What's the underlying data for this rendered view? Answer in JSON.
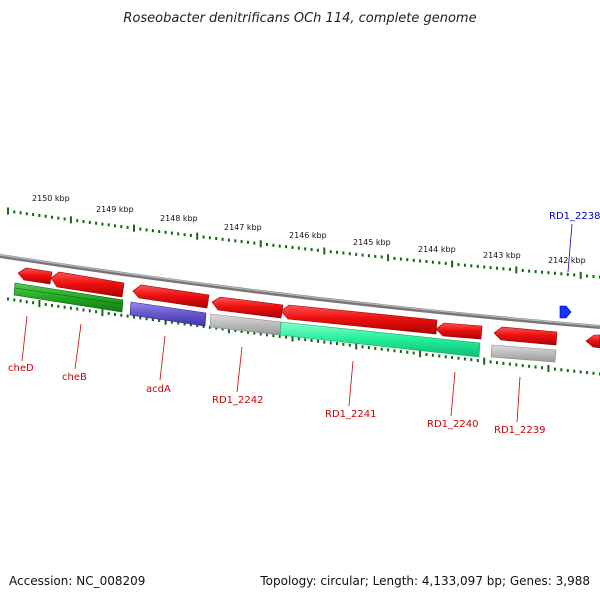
{
  "title": "Roseobacter denitrificans OCh 114, complete genome",
  "tick_labels": [
    "2150 kbp",
    "2149 kbp",
    "2148 kbp",
    "2147 kbp",
    "2146 kbp",
    "2145 kbp",
    "2144 kbp",
    "2143 kbp",
    "2142 kbp"
  ],
  "genes": [
    {
      "name": "cheD",
      "color": "#cc0000",
      "fill": "#ee1111",
      "strand": "-"
    },
    {
      "name": "cheB",
      "color": "#cc0000",
      "fill": "#ee1111",
      "strand": "-"
    },
    {
      "name": "",
      "color": "#117711",
      "fill": "#22aa22",
      "strand": "-"
    },
    {
      "name": "acdA",
      "color": "#cc0000",
      "fill": "#ee1111",
      "strand": "-"
    },
    {
      "name": "RD1_2242",
      "color": "#cc0000",
      "fill": "#ee1111",
      "strand": "-"
    },
    {
      "name": "RD1_2241",
      "color": "#cc0000",
      "fill": "#ee1111",
      "strand": "-"
    },
    {
      "name": "RD1_2240",
      "color": "#cc0000",
      "fill": "#ee1111",
      "strand": "-"
    },
    {
      "name": "RD1_2239",
      "color": "#cc0000",
      "fill": "#ee1111",
      "strand": "-"
    },
    {
      "name": "RD1_2238",
      "color": "#0000cc",
      "fill": "#1133ff",
      "strand": "+"
    }
  ],
  "footer": {
    "accession": "Accession: NC_008209",
    "summary": "Topology: circular; Length: 4,133,097 bp; Genes: 3,988"
  },
  "colors": {
    "backbone": "#888888",
    "tick_marks": "#116611",
    "label_red": "#cc0000",
    "label_blue": "#0000cc",
    "feature_purple": "#6655cc",
    "feature_gray": "#bbbbbb",
    "feature_teal": "#22ee99",
    "feature_green": "#22aa22"
  }
}
